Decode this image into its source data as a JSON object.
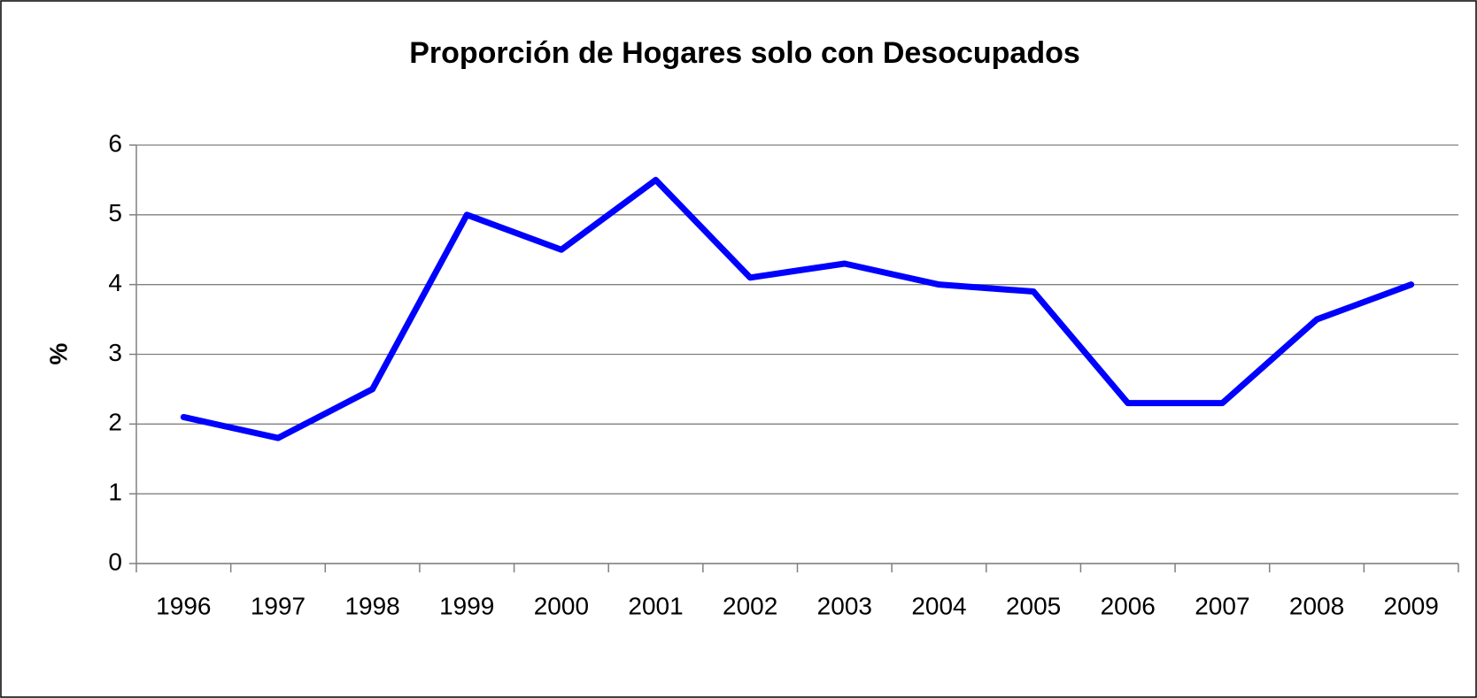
{
  "chart_data": {
    "type": "line",
    "title": "Proporción de Hogares solo con Desocupados",
    "y_label": "%",
    "categories": [
      "1996",
      "1997",
      "1998",
      "1999",
      "2000",
      "2001",
      "2002",
      "2003",
      "2004",
      "2005",
      "2006",
      "2007",
      "2008",
      "2009"
    ],
    "series": [
      {
        "name": "Proporción",
        "color": "#0000ff",
        "values": [
          2.1,
          1.8,
          2.5,
          5.0,
          4.5,
          5.5,
          4.1,
          4.3,
          4.0,
          3.9,
          2.3,
          2.3,
          3.5,
          4.0
        ]
      }
    ],
    "ylim": [
      0,
      6
    ],
    "yticks": [
      0,
      1,
      2,
      3,
      4,
      5,
      6
    ],
    "grid": true
  }
}
